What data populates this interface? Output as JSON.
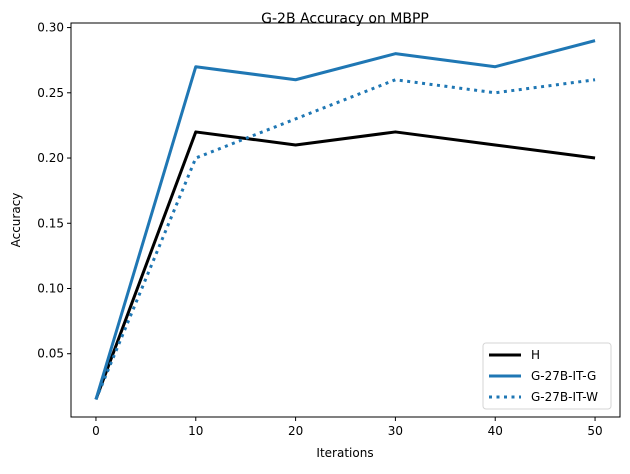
{
  "chart_data": {
    "type": "line",
    "title": "G-2B Accuracy on MBPP",
    "xlabel": "Iterations",
    "ylabel": "Accuracy",
    "x": [
      0,
      10,
      20,
      30,
      40,
      50
    ],
    "xticks": [
      "0",
      "10",
      "20",
      "30",
      "40",
      "50"
    ],
    "yticks": [
      "0.05",
      "0.10",
      "0.15",
      "0.20",
      "0.25",
      "0.30"
    ],
    "xlim": [
      -2.5,
      52.5
    ],
    "ylim": [
      0.0015,
      0.3035
    ],
    "grid": false,
    "legend_position": "lower right",
    "series": [
      {
        "name": "H",
        "values": [
          0.015,
          0.22,
          0.21,
          0.22,
          0.21,
          0.2
        ],
        "color": "#000000",
        "style": "solid"
      },
      {
        "name": "G-27B-IT-G",
        "values": [
          0.015,
          0.27,
          0.26,
          0.28,
          0.27,
          0.29
        ],
        "color": "#1f77b4",
        "style": "solid"
      },
      {
        "name": "G-27B-IT-W",
        "values": [
          0.015,
          0.2,
          0.23,
          0.26,
          0.25,
          0.26
        ],
        "color": "#1f77b4",
        "style": "dotted"
      }
    ]
  }
}
